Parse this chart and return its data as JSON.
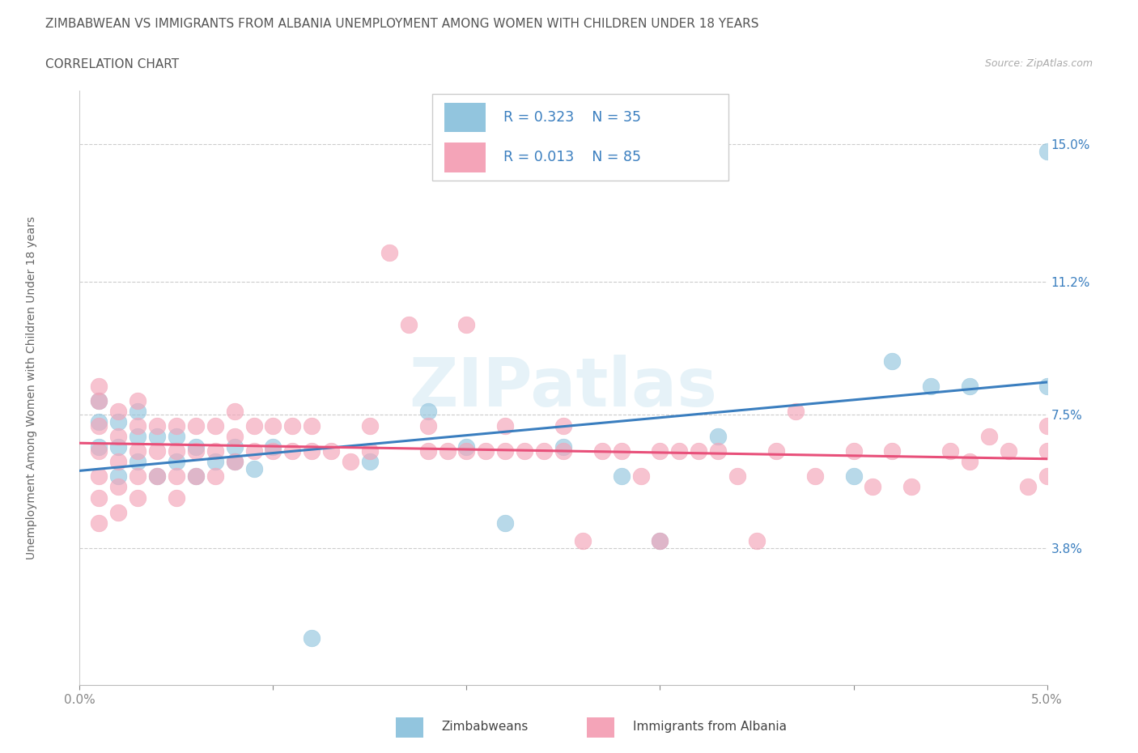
{
  "title": "ZIMBABWEAN VS IMMIGRANTS FROM ALBANIA UNEMPLOYMENT AMONG WOMEN WITH CHILDREN UNDER 18 YEARS",
  "subtitle": "CORRELATION CHART",
  "source": "Source: ZipAtlas.com",
  "ylabel": "Unemployment Among Women with Children Under 18 years",
  "xlim": [
    0.0,
    0.05
  ],
  "ylim": [
    0.0,
    0.165
  ],
  "xtick_positions": [
    0.0,
    0.01,
    0.02,
    0.03,
    0.04,
    0.05
  ],
  "xtick_labels": [
    "0.0%",
    "",
    "",
    "",
    "",
    "5.0%"
  ],
  "ytick_positions": [
    0.038,
    0.075,
    0.112,
    0.15
  ],
  "ytick_labels": [
    "3.8%",
    "7.5%",
    "11.2%",
    "15.0%"
  ],
  "color_blue": "#92c5de",
  "color_pink": "#f4a4b8",
  "line_blue": "#3a7ebf",
  "line_pink": "#e8507a",
  "watermark": "ZIPatlas",
  "scatter_blue": [
    [
      0.001,
      0.066
    ],
    [
      0.001,
      0.073
    ],
    [
      0.001,
      0.079
    ],
    [
      0.002,
      0.058
    ],
    [
      0.002,
      0.066
    ],
    [
      0.002,
      0.073
    ],
    [
      0.003,
      0.062
    ],
    [
      0.003,
      0.069
    ],
    [
      0.003,
      0.076
    ],
    [
      0.004,
      0.058
    ],
    [
      0.004,
      0.069
    ],
    [
      0.005,
      0.062
    ],
    [
      0.005,
      0.069
    ],
    [
      0.006,
      0.058
    ],
    [
      0.006,
      0.066
    ],
    [
      0.007,
      0.062
    ],
    [
      0.008,
      0.066
    ],
    [
      0.008,
      0.062
    ],
    [
      0.009,
      0.06
    ],
    [
      0.01,
      0.066
    ],
    [
      0.012,
      0.013
    ],
    [
      0.015,
      0.062
    ],
    [
      0.018,
      0.076
    ],
    [
      0.02,
      0.066
    ],
    [
      0.022,
      0.045
    ],
    [
      0.025,
      0.066
    ],
    [
      0.028,
      0.058
    ],
    [
      0.03,
      0.04
    ],
    [
      0.033,
      0.069
    ],
    [
      0.04,
      0.058
    ],
    [
      0.042,
      0.09
    ],
    [
      0.044,
      0.083
    ],
    [
      0.046,
      0.083
    ],
    [
      0.05,
      0.083
    ],
    [
      0.05,
      0.148
    ]
  ],
  "scatter_pink": [
    [
      0.001,
      0.045
    ],
    [
      0.001,
      0.052
    ],
    [
      0.001,
      0.058
    ],
    [
      0.001,
      0.065
    ],
    [
      0.001,
      0.072
    ],
    [
      0.001,
      0.079
    ],
    [
      0.001,
      0.083
    ],
    [
      0.002,
      0.048
    ],
    [
      0.002,
      0.055
    ],
    [
      0.002,
      0.062
    ],
    [
      0.002,
      0.069
    ],
    [
      0.002,
      0.076
    ],
    [
      0.003,
      0.052
    ],
    [
      0.003,
      0.058
    ],
    [
      0.003,
      0.065
    ],
    [
      0.003,
      0.072
    ],
    [
      0.003,
      0.079
    ],
    [
      0.004,
      0.058
    ],
    [
      0.004,
      0.065
    ],
    [
      0.004,
      0.072
    ],
    [
      0.005,
      0.052
    ],
    [
      0.005,
      0.058
    ],
    [
      0.005,
      0.065
    ],
    [
      0.005,
      0.072
    ],
    [
      0.006,
      0.058
    ],
    [
      0.006,
      0.065
    ],
    [
      0.006,
      0.072
    ],
    [
      0.007,
      0.058
    ],
    [
      0.007,
      0.065
    ],
    [
      0.007,
      0.072
    ],
    [
      0.008,
      0.062
    ],
    [
      0.008,
      0.069
    ],
    [
      0.008,
      0.076
    ],
    [
      0.009,
      0.065
    ],
    [
      0.009,
      0.072
    ],
    [
      0.01,
      0.065
    ],
    [
      0.01,
      0.072
    ],
    [
      0.011,
      0.065
    ],
    [
      0.011,
      0.072
    ],
    [
      0.012,
      0.065
    ],
    [
      0.012,
      0.072
    ],
    [
      0.013,
      0.065
    ],
    [
      0.014,
      0.062
    ],
    [
      0.015,
      0.065
    ],
    [
      0.015,
      0.072
    ],
    [
      0.016,
      0.12
    ],
    [
      0.017,
      0.1
    ],
    [
      0.018,
      0.065
    ],
    [
      0.018,
      0.072
    ],
    [
      0.019,
      0.065
    ],
    [
      0.02,
      0.065
    ],
    [
      0.02,
      0.1
    ],
    [
      0.021,
      0.065
    ],
    [
      0.022,
      0.065
    ],
    [
      0.022,
      0.072
    ],
    [
      0.023,
      0.065
    ],
    [
      0.024,
      0.065
    ],
    [
      0.025,
      0.065
    ],
    [
      0.025,
      0.072
    ],
    [
      0.026,
      0.04
    ],
    [
      0.027,
      0.065
    ],
    [
      0.028,
      0.065
    ],
    [
      0.029,
      0.058
    ],
    [
      0.03,
      0.065
    ],
    [
      0.03,
      0.04
    ],
    [
      0.031,
      0.065
    ],
    [
      0.032,
      0.065
    ],
    [
      0.033,
      0.065
    ],
    [
      0.034,
      0.058
    ],
    [
      0.035,
      0.04
    ],
    [
      0.036,
      0.065
    ],
    [
      0.038,
      0.058
    ],
    [
      0.04,
      0.065
    ],
    [
      0.042,
      0.065
    ],
    [
      0.045,
      0.065
    ],
    [
      0.048,
      0.065
    ],
    [
      0.05,
      0.065
    ],
    [
      0.05,
      0.058
    ],
    [
      0.05,
      0.072
    ],
    [
      0.037,
      0.076
    ],
    [
      0.041,
      0.055
    ],
    [
      0.043,
      0.055
    ],
    [
      0.046,
      0.062
    ],
    [
      0.047,
      0.069
    ],
    [
      0.049,
      0.055
    ]
  ]
}
